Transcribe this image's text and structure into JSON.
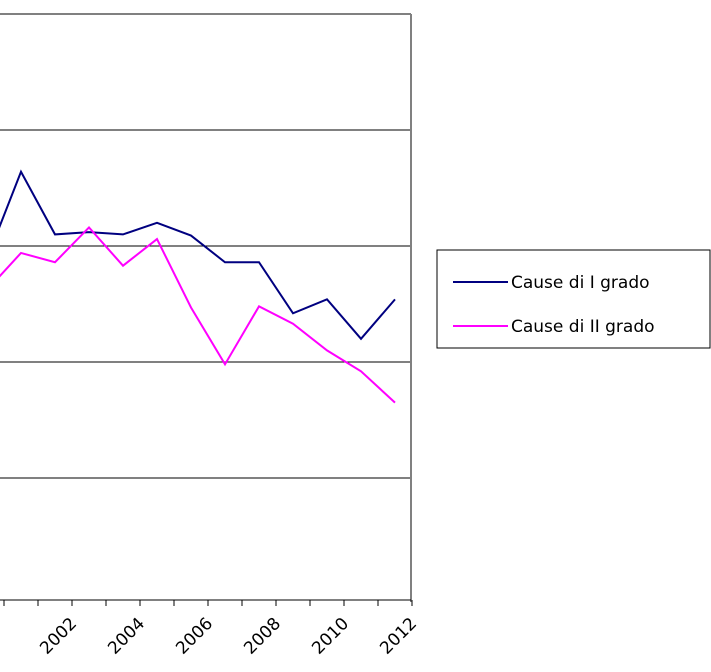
{
  "chart_data": {
    "type": "line",
    "categories": [
      null,
      null,
      "2002",
      null,
      "2004",
      null,
      "2006",
      null,
      "2008",
      null,
      "2010",
      null,
      "2012"
    ],
    "series": [
      {
        "name": "Cause di I grado",
        "color": "#000080",
        "values": [
          2.89,
          3.64,
          3.1,
          3.12,
          3.1,
          3.2,
          3.09,
          2.86,
          2.86,
          2.42,
          2.54,
          2.2,
          2.54
        ]
      },
      {
        "name": "Cause di II grado",
        "color": "#ff00ff",
        "values": [
          2.62,
          2.94,
          2.86,
          3.16,
          2.83,
          3.06,
          2.47,
          1.98,
          2.48,
          2.33,
          2.1,
          1.92,
          1.65
        ]
      }
    ],
    "ylim": [
      0,
      5
    ],
    "yticks": [
      0,
      1,
      2,
      3,
      4,
      5
    ],
    "grid": true,
    "legend": "right"
  }
}
